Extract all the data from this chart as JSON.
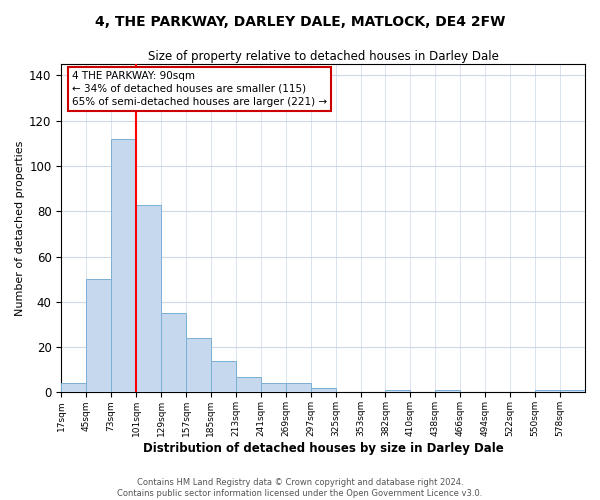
{
  "title": "4, THE PARKWAY, DARLEY DALE, MATLOCK, DE4 2FW",
  "subtitle": "Size of property relative to detached houses in Darley Dale",
  "xlabel": "Distribution of detached houses by size in Darley Dale",
  "ylabel": "Number of detached properties",
  "bin_labels": [
    "17sqm",
    "45sqm",
    "73sqm",
    "101sqm",
    "129sqm",
    "157sqm",
    "185sqm",
    "213sqm",
    "241sqm",
    "269sqm",
    "297sqm",
    "325sqm",
    "353sqm",
    "382sqm",
    "410sqm",
    "438sqm",
    "466sqm",
    "494sqm",
    "522sqm",
    "550sqm",
    "578sqm"
  ],
  "bar_heights": [
    4,
    50,
    112,
    83,
    35,
    24,
    14,
    7,
    4,
    4,
    2,
    0,
    0,
    1,
    0,
    1,
    0,
    0,
    0,
    1,
    1
  ],
  "bar_color": "#c5d8ed",
  "bar_edge_color": "#7aafd4",
  "vline_bin_edge": 3,
  "ylim": [
    0,
    145
  ],
  "yticks": [
    0,
    20,
    40,
    60,
    80,
    100,
    120,
    140
  ],
  "annotation_text": "4 THE PARKWAY: 90sqm\n← 34% of detached houses are smaller (115)\n65% of semi-detached houses are larger (221) →",
  "annotation_box_color": "#ffffff",
  "annotation_box_edge": "#cc0000",
  "footnote": "Contains HM Land Registry data © Crown copyright and database right 2024.\nContains public sector information licensed under the Open Government Licence v3.0.",
  "background_color": "#ffffff",
  "grid_color": "#ccd8ec"
}
